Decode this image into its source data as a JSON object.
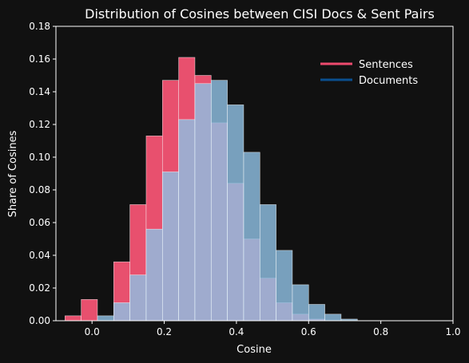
{
  "chart_data": {
    "type": "bar",
    "title": "Distribution of Cosines between CISI Docs & Sent Pairs",
    "xlabel": "Cosine",
    "ylabel": "Share of Cosines",
    "xlim": [
      -0.1,
      1.0
    ],
    "ylim": [
      0,
      0.18
    ],
    "xticks": [
      0.0,
      0.2,
      0.4,
      0.6,
      0.8,
      1.0
    ],
    "xtick_labels": [
      "0.0",
      "0.2",
      "0.4",
      "0.6",
      "0.8",
      "1.0"
    ],
    "yticks": [
      0,
      0.02,
      0.04,
      0.06,
      0.08,
      0.1,
      0.12,
      0.14,
      0.16,
      0.18
    ],
    "ytick_labels": [
      "0.00",
      "0.02",
      "0.04",
      "0.06",
      "0.08",
      "0.10",
      "0.12",
      "0.14",
      "0.16",
      "0.18"
    ],
    "bin_width": 0.045,
    "legend_position": "top-right",
    "grid": false,
    "series": [
      {
        "name": "Sentences",
        "color": "#e8506e",
        "legend_color": "#ee4a6e",
        "bins": [
          {
            "x0": -0.075,
            "value": 0.003
          },
          {
            "x0": -0.03,
            "value": 0.013
          },
          {
            "x0": 0.015,
            "value": 0.0
          },
          {
            "x0": 0.06,
            "value": 0.036
          },
          {
            "x0": 0.105,
            "value": 0.071
          },
          {
            "x0": 0.15,
            "value": 0.113
          },
          {
            "x0": 0.195,
            "value": 0.147
          },
          {
            "x0": 0.24,
            "value": 0.161
          },
          {
            "x0": 0.285,
            "value": 0.15
          },
          {
            "x0": 0.33,
            "value": 0.121
          },
          {
            "x0": 0.375,
            "value": 0.084
          },
          {
            "x0": 0.42,
            "value": 0.05
          },
          {
            "x0": 0.465,
            "value": 0.026
          },
          {
            "x0": 0.51,
            "value": 0.011
          },
          {
            "x0": 0.555,
            "value": 0.004
          },
          {
            "x0": 0.6,
            "value": 0.001
          }
        ]
      },
      {
        "name": "Documents",
        "color": "#8fbfe3",
        "legend_color": "#0a4f8f",
        "bins": [
          {
            "x0": 0.015,
            "value": 0.003
          },
          {
            "x0": 0.06,
            "value": 0.011
          },
          {
            "x0": 0.105,
            "value": 0.028
          },
          {
            "x0": 0.15,
            "value": 0.056
          },
          {
            "x0": 0.195,
            "value": 0.091
          },
          {
            "x0": 0.24,
            "value": 0.123
          },
          {
            "x0": 0.285,
            "value": 0.145
          },
          {
            "x0": 0.33,
            "value": 0.147
          },
          {
            "x0": 0.375,
            "value": 0.132
          },
          {
            "x0": 0.42,
            "value": 0.103
          },
          {
            "x0": 0.465,
            "value": 0.071
          },
          {
            "x0": 0.51,
            "value": 0.043
          },
          {
            "x0": 0.555,
            "value": 0.022
          },
          {
            "x0": 0.6,
            "value": 0.01
          },
          {
            "x0": 0.645,
            "value": 0.004
          },
          {
            "x0": 0.69,
            "value": 0.001
          }
        ]
      }
    ]
  }
}
